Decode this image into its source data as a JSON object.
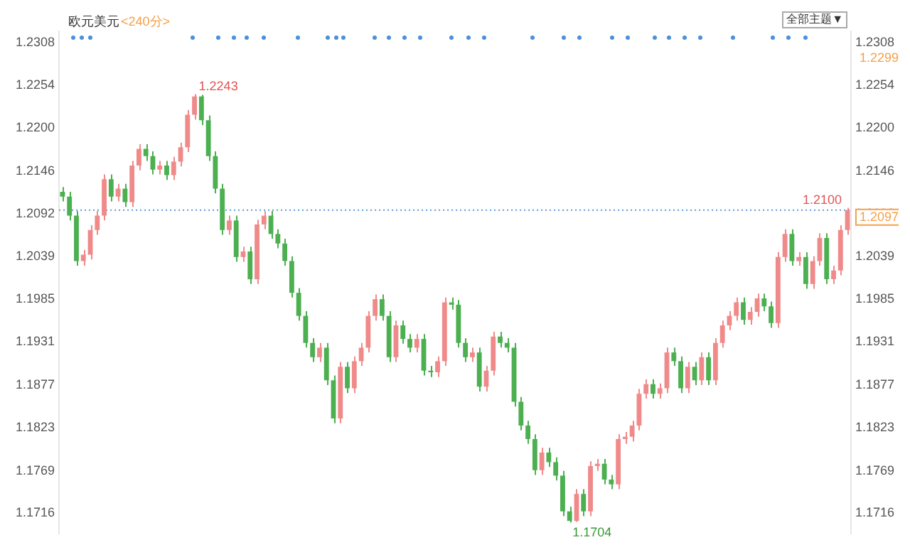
{
  "chart_data": {
    "type": "candlestick",
    "title": "欧元美元",
    "subtitle": "<240分>",
    "categories": [
      null,
      null,
      null,
      null,
      null,
      null,
      null,
      null,
      null,
      null,
      null,
      null,
      null,
      null,
      null,
      null,
      null,
      null,
      null,
      null,
      null,
      null,
      null,
      null,
      null,
      null,
      null,
      null,
      null,
      null,
      null,
      null,
      null,
      null,
      null,
      null,
      null,
      null,
      null,
      null,
      null,
      null,
      null,
      null,
      null,
      null,
      null,
      null,
      null,
      null,
      null,
      null,
      null,
      null,
      null,
      null,
      null,
      null,
      null,
      null,
      null,
      null,
      null,
      null,
      null,
      null,
      null,
      null,
      null,
      null,
      null,
      null,
      null,
      null,
      null,
      null,
      null,
      null,
      null,
      null,
      null,
      null,
      null,
      null,
      null,
      null,
      null,
      null,
      null,
      null,
      null,
      null,
      null,
      null,
      null,
      null,
      null,
      null,
      null,
      null,
      null,
      null,
      null,
      null,
      null,
      null,
      null,
      null,
      null,
      null,
      null,
      null,
      null,
      null
    ],
    "ohlc": [
      [
        1.212,
        1.2126,
        1.2108,
        1.2114
      ],
      [
        1.2114,
        1.212,
        1.2084,
        1.209
      ],
      [
        1.209,
        1.2096,
        1.2027,
        1.2033
      ],
      [
        1.2033,
        1.2047,
        1.2027,
        1.2041
      ],
      [
        1.2041,
        1.2078,
        1.2035,
        1.2072
      ],
      [
        1.2072,
        1.2096,
        1.2066,
        1.209
      ],
      [
        1.209,
        1.2142,
        1.2084,
        1.2136
      ],
      [
        1.2136,
        1.2142,
        1.2108,
        1.2114
      ],
      [
        1.2114,
        1.213,
        1.2108,
        1.2124
      ],
      [
        1.2124,
        1.213,
        1.2101,
        1.2107
      ],
      [
        1.2107,
        1.2159,
        1.2101,
        1.2153
      ],
      [
        1.2153,
        1.218,
        1.2147,
        1.2174
      ],
      [
        1.2174,
        1.218,
        1.2159,
        1.2165
      ],
      [
        1.2165,
        1.2171,
        1.2142,
        1.2148
      ],
      [
        1.2148,
        1.2159,
        1.2142,
        1.2153
      ],
      [
        1.2153,
        1.2159,
        1.2135,
        1.2141
      ],
      [
        1.2141,
        1.2164,
        1.2135,
        1.2158
      ],
      [
        1.2158,
        1.2182,
        1.2152,
        1.2176
      ],
      [
        1.2176,
        1.2223,
        1.217,
        1.2217
      ],
      [
        1.2217,
        1.2243,
        1.2211,
        1.224
      ],
      [
        1.224,
        1.2242,
        1.2204,
        1.221
      ],
      [
        1.221,
        1.2216,
        1.2159,
        1.2165
      ],
      [
        1.2165,
        1.2171,
        1.2118,
        1.2124
      ],
      [
        1.2124,
        1.213,
        1.2066,
        1.2072
      ],
      [
        1.2072,
        1.209,
        1.2066,
        1.2084
      ],
      [
        1.2084,
        1.209,
        1.2032,
        1.2038
      ],
      [
        1.2038,
        1.2051,
        1.2032,
        1.2045
      ],
      [
        1.2045,
        1.2051,
        1.2004,
        1.201
      ],
      [
        1.201,
        1.2085,
        1.2004,
        1.2079
      ],
      [
        1.2079,
        1.2096,
        1.2073,
        1.209
      ],
      [
        1.209,
        1.2096,
        1.2061,
        1.2067
      ],
      [
        1.2067,
        1.2073,
        1.2049,
        1.2055
      ],
      [
        1.2055,
        1.2061,
        1.2027,
        1.2033
      ],
      [
        1.2033,
        1.2039,
        1.1987,
        1.1993
      ],
      [
        1.1993,
        1.1999,
        1.1958,
        1.1964
      ],
      [
        1.1964,
        1.197,
        1.1924,
        1.193
      ],
      [
        1.193,
        1.1936,
        1.1906,
        1.1912
      ],
      [
        1.1912,
        1.193,
        1.1906,
        1.1924
      ],
      [
        1.1924,
        1.193,
        1.1877,
        1.1883
      ],
      [
        1.1883,
        1.1889,
        1.1829,
        1.1835
      ],
      [
        1.1835,
        1.1906,
        1.1829,
        1.19
      ],
      [
        1.19,
        1.1906,
        1.1867,
        1.1873
      ],
      [
        1.1873,
        1.1913,
        1.1867,
        1.1907
      ],
      [
        1.1907,
        1.193,
        1.1901,
        1.1924
      ],
      [
        1.1924,
        1.197,
        1.1918,
        1.1964
      ],
      [
        1.1964,
        1.1991,
        1.1958,
        1.1985
      ],
      [
        1.1985,
        1.1991,
        1.1958,
        1.1964
      ],
      [
        1.1964,
        1.197,
        1.1906,
        1.1912
      ],
      [
        1.1912,
        1.1958,
        1.1906,
        1.1952
      ],
      [
        1.1952,
        1.1958,
        1.1929,
        1.1935
      ],
      [
        1.1935,
        1.1941,
        1.1918,
        1.1924
      ],
      [
        1.1924,
        1.1941,
        1.1918,
        1.1935
      ],
      [
        1.1935,
        1.1941,
        1.1889,
        1.1895
      ],
      [
        1.1895,
        1.1901,
        1.1887,
        1.1893
      ],
      [
        1.1893,
        1.1913,
        1.1887,
        1.1907
      ],
      [
        1.1907,
        1.1987,
        1.1901,
        1.1981
      ],
      [
        1.1981,
        1.1987,
        1.1972,
        1.1978
      ],
      [
        1.1978,
        1.1984,
        1.1924,
        1.193
      ],
      [
        1.193,
        1.1936,
        1.1906,
        1.1912
      ],
      [
        1.1912,
        1.1924,
        1.1906,
        1.1918
      ],
      [
        1.1918,
        1.1924,
        1.1869,
        1.1875
      ],
      [
        1.1875,
        1.1901,
        1.1869,
        1.1895
      ],
      [
        1.1895,
        1.1944,
        1.1889,
        1.1938
      ],
      [
        1.1938,
        1.1944,
        1.1924,
        1.193
      ],
      [
        1.193,
        1.1936,
        1.1918,
        1.1924
      ],
      [
        1.1924,
        1.193,
        1.185,
        1.1856
      ],
      [
        1.1856,
        1.1862,
        1.182,
        1.1826
      ],
      [
        1.1826,
        1.1832,
        1.1803,
        1.1809
      ],
      [
        1.1809,
        1.1815,
        1.1764,
        1.177
      ],
      [
        1.177,
        1.1798,
        1.1764,
        1.1792
      ],
      [
        1.1792,
        1.1798,
        1.1774,
        1.178
      ],
      [
        1.178,
        1.1786,
        1.1757,
        1.1763
      ],
      [
        1.1763,
        1.1769,
        1.1712,
        1.1718
      ],
      [
        1.1718,
        1.1724,
        1.1704,
        1.1706
      ],
      [
        1.1706,
        1.1746,
        1.1705,
        1.174
      ],
      [
        1.174,
        1.1746,
        1.1712,
        1.1718
      ],
      [
        1.1718,
        1.1781,
        1.1712,
        1.1775
      ],
      [
        1.1775,
        1.1784,
        1.1769,
        1.1778
      ],
      [
        1.1778,
        1.1784,
        1.1752,
        1.1758
      ],
      [
        1.1758,
        1.1764,
        1.1746,
        1.1752
      ],
      [
        1.1752,
        1.1815,
        1.1746,
        1.1809
      ],
      [
        1.1809,
        1.1818,
        1.1803,
        1.1812
      ],
      [
        1.1812,
        1.1832,
        1.1806,
        1.1826
      ],
      [
        1.1826,
        1.1872,
        1.182,
        1.1866
      ],
      [
        1.1866,
        1.1884,
        1.186,
        1.1878
      ],
      [
        1.1878,
        1.1884,
        1.186,
        1.1866
      ],
      [
        1.1866,
        1.1879,
        1.186,
        1.1873
      ],
      [
        1.1873,
        1.1924,
        1.1867,
        1.1918
      ],
      [
        1.1918,
        1.1924,
        1.1901,
        1.1907
      ],
      [
        1.1907,
        1.1913,
        1.1867,
        1.1873
      ],
      [
        1.1873,
        1.1906,
        1.1867,
        1.19
      ],
      [
        1.19,
        1.1906,
        1.1877,
        1.1883
      ],
      [
        1.1883,
        1.1918,
        1.1877,
        1.1912
      ],
      [
        1.1912,
        1.1918,
        1.1877,
        1.1883
      ],
      [
        1.1883,
        1.1936,
        1.1877,
        1.193
      ],
      [
        1.193,
        1.1958,
        1.1924,
        1.1952
      ],
      [
        1.1952,
        1.197,
        1.1946,
        1.1964
      ],
      [
        1.1964,
        1.1987,
        1.1958,
        1.1981
      ],
      [
        1.1981,
        1.1987,
        1.1953,
        1.1959
      ],
      [
        1.1959,
        1.1975,
        1.1953,
        1.1969
      ],
      [
        1.1969,
        1.1992,
        1.1963,
        1.1986
      ],
      [
        1.1986,
        1.1992,
        1.197,
        1.1976
      ],
      [
        1.1976,
        1.1982,
        1.1949,
        1.1955
      ],
      [
        1.1955,
        1.2044,
        1.1949,
        1.2038
      ],
      [
        1.2038,
        1.2073,
        1.2032,
        1.2067
      ],
      [
        1.2067,
        1.2073,
        1.2027,
        1.2033
      ],
      [
        1.2033,
        1.2044,
        1.2027,
        1.2038
      ],
      [
        1.2038,
        1.2044,
        1.1998,
        1.2004
      ],
      [
        1.2004,
        1.2039,
        1.1998,
        1.2033
      ],
      [
        1.2033,
        1.2068,
        1.2027,
        1.2062
      ],
      [
        1.2062,
        1.2068,
        1.2004,
        1.201
      ],
      [
        1.201,
        1.2027,
        1.2004,
        1.2021
      ],
      [
        1.2021,
        1.2078,
        1.2015,
        1.2072
      ],
      [
        1.2072,
        1.21,
        1.2066,
        1.2097
      ]
    ],
    "ylim": [
      1.169,
      1.2322
    ],
    "yticks": [
      1.2308,
      1.2254,
      {
        "value": 1.22,
        "label": "1.2200"
      },
      1.2146,
      1.2092,
      1.2039,
      1.1985,
      1.1931,
      1.1877,
      1.1823,
      1.1769,
      1.1716
    ],
    "y2lim": [
      1.169,
      1.2322
    ],
    "y2ticks": [
      1.2308,
      1.2254,
      {
        "value": 1.22,
        "label": "1.2200"
      },
      1.2146,
      1.2092,
      1.2039,
      1.1985,
      1.1931,
      1.1877,
      1.1823,
      1.1769,
      1.1716
    ],
    "ref_lines": [
      {
        "axis": "y",
        "value": 1.2097,
        "label": "1.2097",
        "color": "#5b9bd5",
        "line_style": "dotted"
      }
    ],
    "annotations": [
      "1.2243",
      {
        "text": "1.1704",
        "y": 1.1704
      },
      {
        "text": "1.2100",
        "y": 1.21
      },
      "1.2299",
      "全部主题▼"
    ],
    "grid": false,
    "legend": false
  }
}
